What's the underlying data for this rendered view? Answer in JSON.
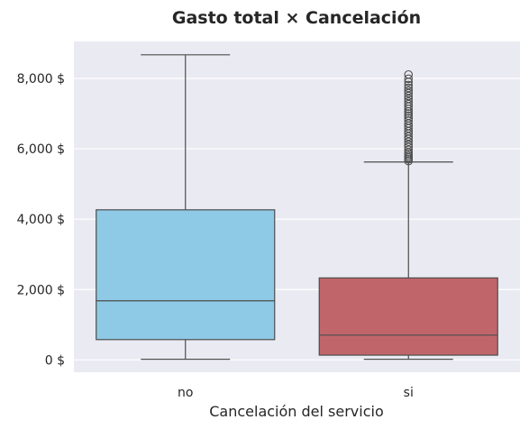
{
  "chart_data": {
    "type": "box",
    "title": "Gasto total × Cancelación",
    "xlabel": "Cancelación del servicio",
    "ylabel": "",
    "ylim": [
      -350,
      9050
    ],
    "grid": true,
    "y_ticks": [
      0,
      2000,
      4000,
      6000,
      8000
    ],
    "y_tick_labels": [
      "0 $",
      "2,000 $",
      "4,000 $",
      "6,000 $",
      "8,000 $"
    ],
    "categories": [
      "no",
      "si"
    ],
    "series": [
      {
        "category": "no",
        "color": "#8ecae6",
        "whisker_low": 19,
        "q1": 577,
        "median": 1680,
        "q3": 4265,
        "whisker_high": 8670,
        "outliers": []
      },
      {
        "category": "si",
        "color": "#c0666a",
        "whisker_low": 19,
        "q1": 135,
        "median": 705,
        "q3": 2330,
        "whisker_high": 5625,
        "outliers": [
          5650,
          5700,
          5750,
          5800,
          5850,
          5900,
          5970,
          6050,
          6120,
          6200,
          6280,
          6350,
          6430,
          6500,
          6580,
          6650,
          6720,
          6800,
          6870,
          6940,
          7000,
          7060,
          7130,
          7200,
          7270,
          7340,
          7420,
          7500,
          7580,
          7650,
          7730,
          7810,
          7900,
          7990,
          8110
        ]
      }
    ]
  }
}
